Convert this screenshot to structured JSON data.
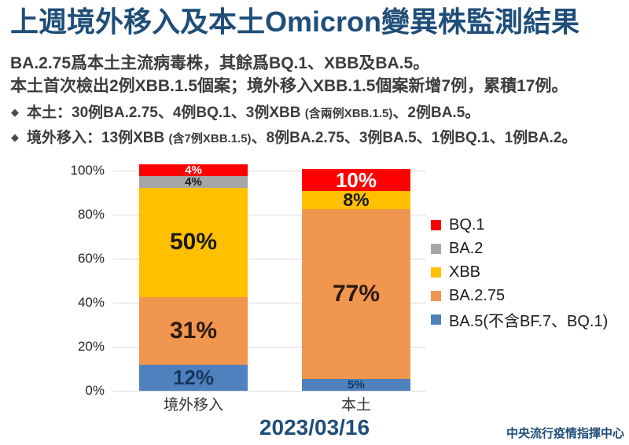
{
  "page": {
    "title": "上週境外移入及本土Omicron變異株監測結果",
    "subtitle_lines": [
      "BA.2.75爲本土主流病毒株，其餘爲BQ.1、XBB及BA.5。",
      "本土首次檢出2例XBB.1.5個案；境外移入XBB.1.5個案新增7例，累積17例。"
    ],
    "bullets": [
      {
        "bullet": "◆",
        "main": "本土：30例BA.2.75、4例BQ.1、3例XBB ",
        "paren": "(含兩例XBB.1.5)",
        "tail": "、2例BA.5。"
      },
      {
        "bullet": "◆",
        "main": "境外移入：13例XBB ",
        "paren": "(含7例XBB.1.5)",
        "tail": "、8例BA.2.75、3例BA.5、1例BQ.1、1例BA.2。"
      }
    ],
    "date": "2023/03/16",
    "footer": "中央流行疫情指揮中心"
  },
  "colors": {
    "accent": "#1F4E79",
    "text": "#3C3C3C",
    "grid": "#DCDCDC"
  },
  "chart_data": {
    "type": "bar",
    "subtype": "stacked-100-percent",
    "categories": [
      "境外移入",
      "本土"
    ],
    "series": [
      {
        "name": "BA.5(不含BF.7、BQ.1)",
        "color": "#4E81BD",
        "label_color": "#17375E",
        "values": [
          12,
          5
        ]
      },
      {
        "name": "BA.2.75",
        "color": "#F0964F",
        "label_color": "#2B1A10",
        "values": [
          31,
          77
        ]
      },
      {
        "name": "XBB",
        "color": "#FFC000",
        "label_color": "#1A1A1A",
        "values": [
          50,
          8
        ]
      },
      {
        "name": "BA.2",
        "color": "#A6A6A6",
        "label_color": "#1A1A1A",
        "values": [
          4,
          0
        ]
      },
      {
        "name": "BQ.1",
        "color": "#FF0000",
        "label_color": "#FFFFFF",
        "values": [
          4,
          10
        ]
      }
    ],
    "legend": [
      {
        "label": "BQ.1",
        "color": "#FF0000"
      },
      {
        "label": "BA.2",
        "color": "#A6A6A6"
      },
      {
        "label": "XBB",
        "color": "#FFC000"
      },
      {
        "label": "BA.2.75",
        "color": "#F0964F"
      },
      {
        "label": "BA.5(不含BF.7、BQ.1)",
        "color": "#4E81BD"
      }
    ],
    "y_ticks": [
      "0%",
      "20%",
      "40%",
      "60%",
      "80%",
      "100%"
    ],
    "ylim": [
      0,
      100
    ],
    "grid": true,
    "legend_position": "right",
    "data_label_suffix": "%"
  }
}
